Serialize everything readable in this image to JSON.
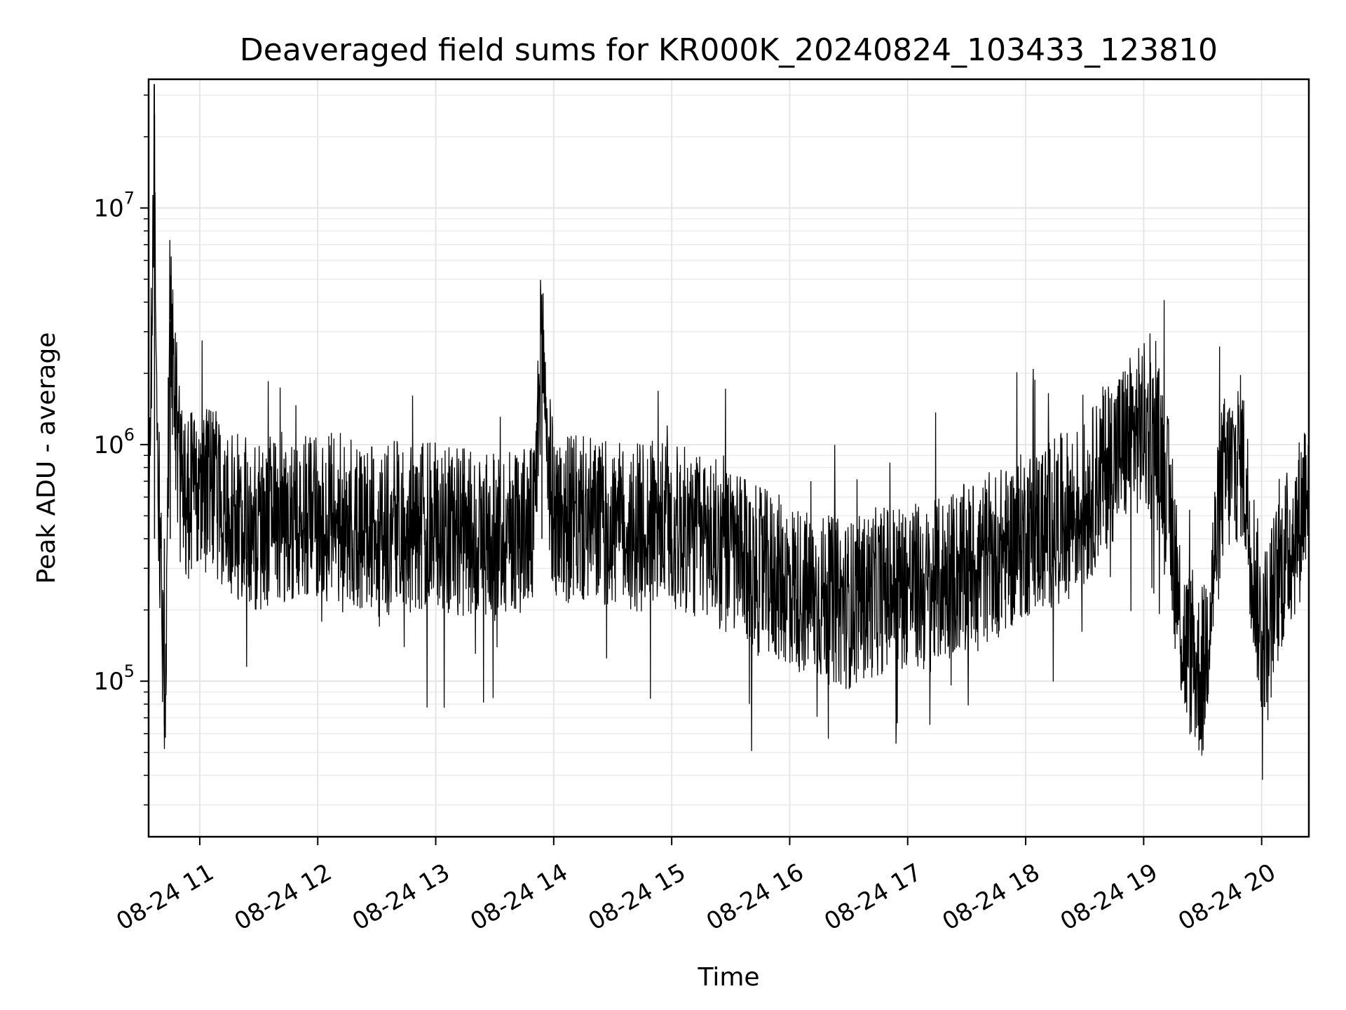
{
  "chart_data": {
    "type": "line",
    "title": "Deaveraged field sums for KR000K_20240824_103433_123810",
    "xlabel": "Time",
    "ylabel": "Peak ADU - average",
    "yscale": "log",
    "ylim": [
      22000,
      35000000
    ],
    "xlim": [
      "2024-08-24 10:34",
      "2024-08-24 20:24"
    ],
    "grid": true,
    "x_ticks": [
      {
        "value": "2024-08-24 11:00",
        "label": "08-24 11"
      },
      {
        "value": "2024-08-24 12:00",
        "label": "08-24 12"
      },
      {
        "value": "2024-08-24 13:00",
        "label": "08-24 13"
      },
      {
        "value": "2024-08-24 14:00",
        "label": "08-24 14"
      },
      {
        "value": "2024-08-24 15:00",
        "label": "08-24 15"
      },
      {
        "value": "2024-08-24 16:00",
        "label": "08-24 16"
      },
      {
        "value": "2024-08-24 17:00",
        "label": "08-24 17"
      },
      {
        "value": "2024-08-24 18:00",
        "label": "08-24 18"
      },
      {
        "value": "2024-08-24 19:00",
        "label": "08-24 19"
      },
      {
        "value": "2024-08-24 20:00",
        "label": "08-24 20"
      }
    ],
    "y_ticks": [
      {
        "value": 100000,
        "base": "10",
        "exp": "5"
      },
      {
        "value": 1000000,
        "base": "10",
        "exp": "6"
      },
      {
        "value": 10000000,
        "base": "10",
        "exp": "7"
      }
    ],
    "series": [
      {
        "color": "#000000",
        "x": [
          "2024-08-24 10:34",
          "2024-08-24 10:37",
          "2024-08-24 10:38",
          "2024-08-24 10:42",
          "2024-08-24 10:45",
          "2024-08-24 10:50",
          "2024-08-24 10:55",
          "2024-08-24 11:00",
          "2024-08-24 11:10",
          "2024-08-24 11:20",
          "2024-08-24 11:30",
          "2024-08-24 11:40",
          "2024-08-24 11:50",
          "2024-08-24 12:00",
          "2024-08-24 12:10",
          "2024-08-24 12:20",
          "2024-08-24 12:30",
          "2024-08-24 12:40",
          "2024-08-24 12:50",
          "2024-08-24 13:00",
          "2024-08-24 13:10",
          "2024-08-24 13:20",
          "2024-08-24 13:30",
          "2024-08-24 13:40",
          "2024-08-24 13:50",
          "2024-08-24 13:54",
          "2024-08-24 13:57",
          "2024-08-24 14:00",
          "2024-08-24 14:10",
          "2024-08-24 14:20",
          "2024-08-24 14:30",
          "2024-08-24 14:40",
          "2024-08-24 14:50",
          "2024-08-24 15:00",
          "2024-08-24 15:10",
          "2024-08-24 15:20",
          "2024-08-24 15:30",
          "2024-08-24 15:40",
          "2024-08-24 15:50",
          "2024-08-24 16:00",
          "2024-08-24 16:10",
          "2024-08-24 16:20",
          "2024-08-24 16:30",
          "2024-08-24 16:40",
          "2024-08-24 16:50",
          "2024-08-24 17:00",
          "2024-08-24 17:10",
          "2024-08-24 17:20",
          "2024-08-24 17:30",
          "2024-08-24 17:40",
          "2024-08-24 17:50",
          "2024-08-24 18:00",
          "2024-08-24 18:10",
          "2024-08-24 18:20",
          "2024-08-24 18:30",
          "2024-08-24 18:40",
          "2024-08-24 18:50",
          "2024-08-24 19:00",
          "2024-08-24 19:10",
          "2024-08-24 19:20",
          "2024-08-24 19:30",
          "2024-08-24 19:40",
          "2024-08-24 19:50",
          "2024-08-24 20:00",
          "2024-08-24 20:10",
          "2024-08-24 20:20",
          "2024-08-24 20:24"
        ],
        "y": [
          400000,
          25000000,
          1500000,
          65000,
          3300000,
          700000,
          600000,
          650000,
          600000,
          500000,
          450000,
          500000,
          480000,
          470000,
          500000,
          450000,
          420000,
          460000,
          440000,
          450000,
          430000,
          420000,
          400000,
          450000,
          430000,
          3200000,
          900000,
          500000,
          480000,
          470000,
          450000,
          440000,
          460000,
          450000,
          420000,
          400000,
          350000,
          300000,
          280000,
          260000,
          230000,
          220000,
          210000,
          230000,
          250000,
          260000,
          240000,
          280000,
          300000,
          330000,
          360000,
          420000,
          450000,
          500000,
          550000,
          800000,
          1000000,
          1200000,
          900000,
          150000,
          100000,
          700000,
          900000,
          150000,
          300000,
          500000,
          900000
        ]
      }
    ]
  }
}
